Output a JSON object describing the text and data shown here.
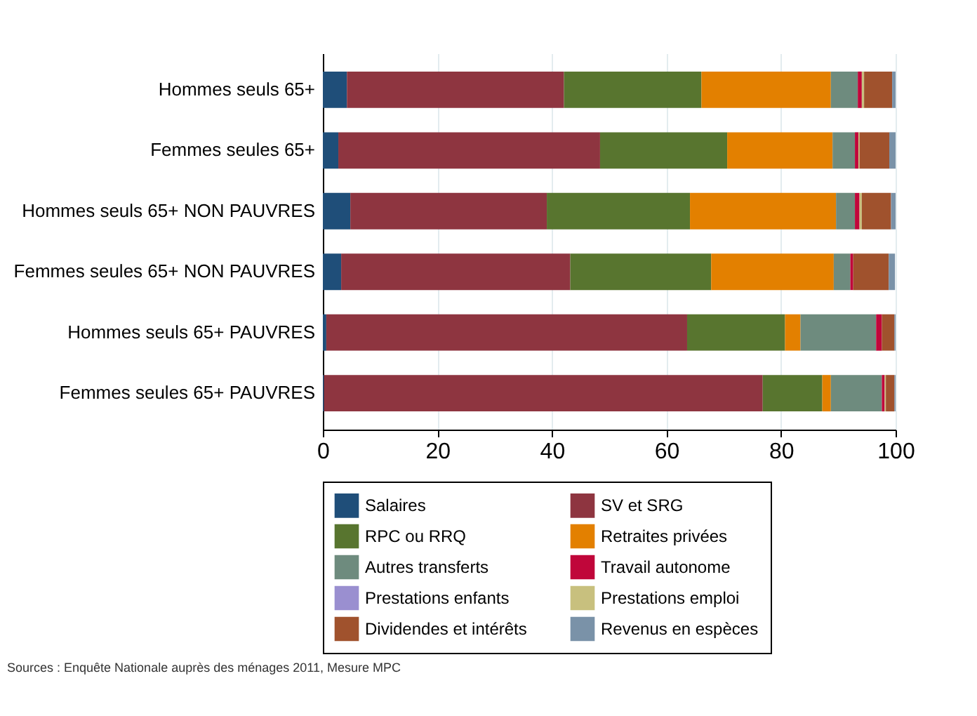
{
  "chart_data": {
    "type": "bar",
    "orientation": "horizontal",
    "stacked": true,
    "categories": [
      "Hommes seuls 65+",
      "Femmes seules 65+",
      "Hommes seuls 65+ NON PAUVRES",
      "Femmes seules 65+ NON PAUVRES",
      "Hommes seuls 65+ PAUVRES",
      "Femmes seules 65+ PAUVRES"
    ],
    "series": [
      {
        "name": "Salaires",
        "color": "#1f4e79",
        "values": [
          4.2,
          2.7,
          4.8,
          3.2,
          0.6,
          0.2
        ]
      },
      {
        "name": "SV et SRG",
        "color": "#8e3540",
        "values": [
          37.9,
          45.7,
          34.3,
          40.0,
          63.0,
          76.6
        ]
      },
      {
        "name": "RPC ou RRQ",
        "color": "#58752f",
        "values": [
          24.0,
          22.2,
          25.0,
          24.6,
          17.1,
          10.4
        ]
      },
      {
        "name": "Retraites privées",
        "color": "#e38000",
        "values": [
          22.6,
          18.4,
          25.5,
          21.4,
          2.7,
          1.5
        ]
      },
      {
        "name": "Autres transferts",
        "color": "#6e8b7e",
        "values": [
          4.7,
          3.9,
          3.3,
          2.9,
          13.2,
          8.9
        ]
      },
      {
        "name": "Travail autonome",
        "color": "#c0063a",
        "values": [
          0.7,
          0.6,
          0.8,
          0.5,
          1.0,
          0.5
        ]
      },
      {
        "name": "Prestations enfants",
        "color": "#9a8fd0",
        "values": [
          0,
          0,
          0,
          0,
          0,
          0
        ]
      },
      {
        "name": "Prestations emploi",
        "color": "#c8c07e",
        "values": [
          0.4,
          0.2,
          0.4,
          null,
          0,
          0.2
        ]
      },
      {
        "name": "Dividendes et intérêts",
        "color": "#a0522d",
        "values": [
          4.9,
          5.2,
          5.1,
          6.2,
          2.2,
          1.5
        ]
      },
      {
        "name": "Revenus en espèces",
        "color": "#7a92a8",
        "values": [
          0.6,
          1.1,
          0.8,
          1.1,
          0.2,
          0.2
        ]
      }
    ],
    "xlim": [
      0,
      100
    ],
    "xticks": [
      0,
      20,
      40,
      60,
      80,
      100
    ],
    "grid": "x",
    "legend": "bottom",
    "annotations": [
      "Sources : Enquête Nationale auprès des ménages 2011, Mesure MPC"
    ]
  }
}
